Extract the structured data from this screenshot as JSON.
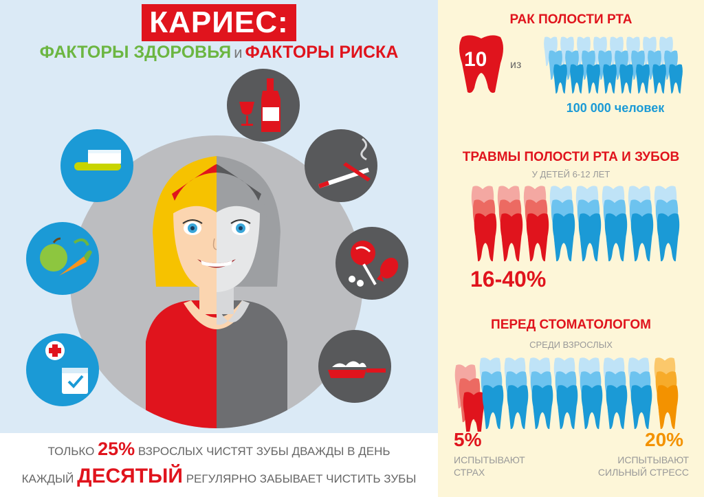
{
  "title": "КАРИЕС:",
  "subtitle": {
    "health": "ФАКТОРЫ ЗДОРОВЬЯ",
    "and": "и",
    "risk": "ФАКТОРЫ РИСКА"
  },
  "bottom": {
    "line1_pre": "ТОЛЬКО",
    "line1_value": "25%",
    "line1_post": "ВЗРОСЛЫХ ЧИСТЯТ ЗУБЫ ДВАЖДЫ В ДЕНЬ",
    "line2_pre": "КАЖДЫЙ",
    "line2_value": "ДЕСЯТЫЙ",
    "line2_post": "РЕГУЛЯРНО ЗАБЫВАЕТ ЧИСТИТЬ ЗУБЫ"
  },
  "cancer": {
    "title": "РАК ПОЛОСТИ РТА",
    "count": "10",
    "of": "из",
    "total": "100 000 человек"
  },
  "trauma": {
    "title": "ТРАВМЫ ПОЛОСТИ РТА И ЗУБОВ",
    "subtitle": "У ДЕТЕЙ 6-12 ЛЕТ",
    "value": "16-40%"
  },
  "dentist": {
    "title": "ПЕРЕД СТОМАТОЛОГОМ",
    "subtitle": "СРЕДИ ВЗРОСЛЫХ",
    "fear_value": "5%",
    "fear_line1": "ИСПЫТЫВАЮТ",
    "fear_line2": "СТРАХ",
    "stress_value": "20%",
    "stress_line1": "ИСПЫТЫВАЮТ",
    "stress_line2": "СИЛЬНЫЙ СТРЕСС"
  },
  "colors": {
    "red": "#e0141d",
    "blue": "#1b9ad6",
    "light_blue": "#6dc3ef",
    "orange": "#f39200",
    "green": "#6cb642",
    "gray": "#58595b"
  },
  "icons": [
    "toothbrush-icon",
    "apple-carrot-icon",
    "medical-calendar-icon",
    "wine-bottle-icon",
    "cigarette-icon",
    "candy-icon",
    "frying-pan-icon"
  ]
}
